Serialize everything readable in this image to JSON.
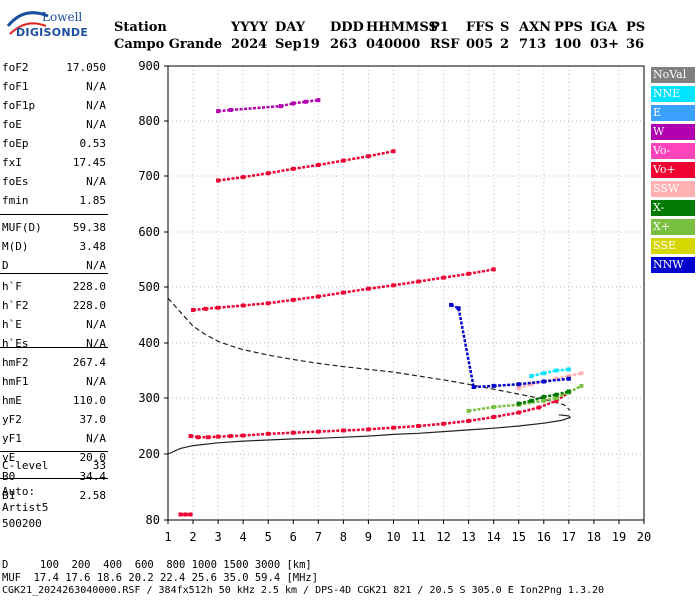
{
  "logo": {
    "line1": "Lowell",
    "line2": "DIGISONDE"
  },
  "header": {
    "labels": [
      "Station",
      "YYYY",
      "DAY",
      "DDD",
      "HHMMSS",
      "P1",
      "FFS",
      "S",
      "AXN",
      "PPS",
      "IGA",
      "PS"
    ],
    "values": [
      "Campo Grande",
      "2024",
      "Sep19",
      "263",
      "040000",
      "RSF",
      "005",
      "2",
      "713",
      "100",
      "03+",
      "36"
    ]
  },
  "scaled_params": {
    "group1": [
      {
        "name": "foF2",
        "value": "17.050"
      },
      {
        "name": "foF1",
        "value": "N/A"
      },
      {
        "name": "foF1p",
        "value": "N/A"
      },
      {
        "name": "foE",
        "value": "N/A"
      },
      {
        "name": "foEp",
        "value": "0.53"
      },
      {
        "name": "fxI",
        "value": "17.45"
      },
      {
        "name": "foEs",
        "value": "N/A"
      },
      {
        "name": "fmin",
        "value": "1.85"
      }
    ],
    "group2": [
      {
        "name": "MUF(D)",
        "value": "59.38"
      },
      {
        "name": "M(D)",
        "value": "3.48"
      },
      {
        "name": "D",
        "value": "N/A"
      }
    ],
    "group3": [
      {
        "name": "h`F",
        "value": "228.0"
      },
      {
        "name": "h`F2",
        "value": "228.0"
      },
      {
        "name": "h`E",
        "value": "N/A"
      },
      {
        "name": "h`Es",
        "value": "N/A"
      }
    ],
    "group4": [
      {
        "name": "hmF2",
        "value": "267.4"
      },
      {
        "name": "hmF1",
        "value": "N/A"
      },
      {
        "name": "hmE",
        "value": "110.0"
      },
      {
        "name": "yF2",
        "value": "37.0"
      },
      {
        "name": "yF1",
        "value": "N/A"
      },
      {
        "name": "yE",
        "value": "20.0"
      },
      {
        "name": "B0",
        "value": "34.4"
      },
      {
        "name": "B1",
        "value": "2.58"
      }
    ],
    "group5": [
      {
        "name": "C-level",
        "value": "33"
      }
    ],
    "autoscale": [
      "Auto:",
      "Artist5",
      "500200"
    ]
  },
  "legend": [
    {
      "label": "NoVal",
      "color": "#808080"
    },
    {
      "label": "NNE",
      "color": "#00e5ff"
    },
    {
      "label": "E",
      "color": "#3aa0ff"
    },
    {
      "label": "W",
      "color": "#b000b0"
    },
    {
      "label": "Vo-",
      "color": "#ff44bb"
    },
    {
      "label": "Vo+",
      "color": "#ee0033"
    },
    {
      "label": "SSW",
      "color": "#ffb0b0"
    },
    {
      "label": "X-",
      "color": "#007a00"
    },
    {
      "label": "X+",
      "color": "#7ac040"
    },
    {
      "label": "SSE",
      "color": "#d6d600"
    },
    {
      "label": "NNW",
      "color": "#0000cc"
    }
  ],
  "footer": {
    "d_row": "D     100  200  400  600  800 1000 1500 3000 [km]",
    "muf_row": "MUF  17.4 17.6 18.6 20.2 22.4 25.6 35.0 59.4 [MHz]",
    "file_row": "CGK21_2024263040000.RSF / 384fx512h 50 kHz 2.5 km / DPS-4D CGK21 821 / 20.5 S 305.0 E Ion2Png 1.3.20"
  },
  "chart_data": {
    "type": "scatter",
    "xlim": [
      1,
      20
    ],
    "ylim": [
      80,
      900
    ],
    "x_ticks": [
      1,
      2,
      3,
      4,
      5,
      6,
      7,
      8,
      9,
      10,
      11,
      12,
      13,
      14,
      15,
      16,
      17,
      18,
      19,
      20
    ],
    "y_ticks": [
      80,
      200,
      300,
      400,
      500,
      600,
      700,
      800,
      900
    ],
    "grid": true,
    "legend_position": "right",
    "series": [
      {
        "name": "Vo+",
        "color": "#ee0033",
        "x": [
          1.9,
          2.2,
          2.6,
          3.0,
          3.5,
          4.0,
          5.0,
          6.0,
          7.0,
          8.0,
          9.0,
          10.0,
          11.0,
          12.0,
          13.0,
          14.0,
          15.0,
          15.8,
          16.5,
          17.0
        ],
        "y": [
          232,
          230,
          230,
          231,
          232,
          233,
          236,
          238,
          240,
          242,
          244,
          247,
          250,
          254,
          259,
          266,
          274,
          283,
          295,
          310
        ]
      },
      {
        "name": "Vo+",
        "color": "#ee0033",
        "x": [
          2.0,
          2.5,
          3.0,
          4.0,
          5.0,
          6.0,
          7.0,
          8.0,
          9.0,
          10.0,
          11.0,
          12.0,
          13.0,
          14.0
        ],
        "y": [
          459,
          461,
          463,
          467,
          471,
          477,
          483,
          490,
          497,
          503,
          510,
          517,
          524,
          532
        ]
      },
      {
        "name": "Vo+",
        "color": "#ee0033",
        "x": [
          3.0,
          4.0,
          5.0,
          6.0,
          7.0,
          8.0,
          9.0,
          10.0
        ],
        "y": [
          692,
          698,
          705,
          713,
          720,
          728,
          736,
          745
        ]
      },
      {
        "name": "W",
        "color": "#b000b0",
        "x": [
          3.0,
          3.5,
          5.5,
          6.0,
          6.5,
          7.0
        ],
        "y": [
          818,
          820,
          827,
          832,
          835,
          838
        ]
      },
      {
        "name": "X+",
        "color": "#7ac040",
        "x": [
          13.0,
          14.0,
          15.0,
          16.0,
          16.5,
          17.0,
          17.5
        ],
        "y": [
          277,
          284,
          288,
          295,
          300,
          310,
          322
        ]
      },
      {
        "name": "SSW",
        "color": "#ffb0b0",
        "x": [
          15.0,
          15.5,
          16.0,
          16.5,
          17.0,
          17.5
        ],
        "y": [
          318,
          325,
          330,
          335,
          340,
          345
        ]
      },
      {
        "name": "NNE",
        "color": "#00e5ff",
        "x": [
          15.5,
          16.0,
          16.5,
          17.0
        ],
        "y": [
          340,
          345,
          350,
          352
        ]
      },
      {
        "name": "NNW",
        "color": "#0000cc",
        "x": [
          12.3,
          12.6,
          13.2,
          14.0,
          15.0,
          16.0,
          17.0
        ],
        "y": [
          468,
          462,
          320,
          322,
          325,
          330,
          335
        ]
      },
      {
        "name": "X-",
        "color": "#007a00",
        "x": [
          15.0,
          15.5,
          16.0,
          16.5,
          17.0
        ],
        "y": [
          290,
          295,
          302,
          306,
          312
        ]
      },
      {
        "name": "Vo+",
        "color": "#ee0033",
        "x": [
          1.5,
          1.7,
          1.9
        ],
        "y": [
          90,
          90,
          90
        ]
      }
    ],
    "profile_solid": {
      "x": [
        1.0,
        1.5,
        2.0,
        3.0,
        4.0,
        5.0,
        6.0,
        7.0,
        8.0,
        9.0,
        10.0,
        11.0,
        12.0,
        13.0,
        14.0,
        15.0,
        16.0,
        16.7,
        17.05,
        17.0,
        16.6
      ],
      "y": [
        200,
        210,
        215,
        220,
        223,
        225,
        227,
        228,
        230,
        232,
        235,
        237,
        240,
        243,
        246,
        250,
        255,
        260,
        265,
        268,
        270
      ]
    },
    "profile_dashed": {
      "x": [
        1.0,
        1.5,
        2.0,
        2.5,
        3.0,
        3.5,
        4.0,
        5.0,
        6.0,
        7.0,
        8.0,
        9.0,
        10.0,
        11.0,
        12.0,
        13.0,
        14.0,
        15.0,
        16.0,
        16.8,
        17.05
      ],
      "y": [
        480,
        455,
        430,
        415,
        403,
        395,
        388,
        378,
        370,
        363,
        357,
        352,
        347,
        340,
        333,
        325,
        316,
        307,
        298,
        288,
        278
      ]
    }
  }
}
